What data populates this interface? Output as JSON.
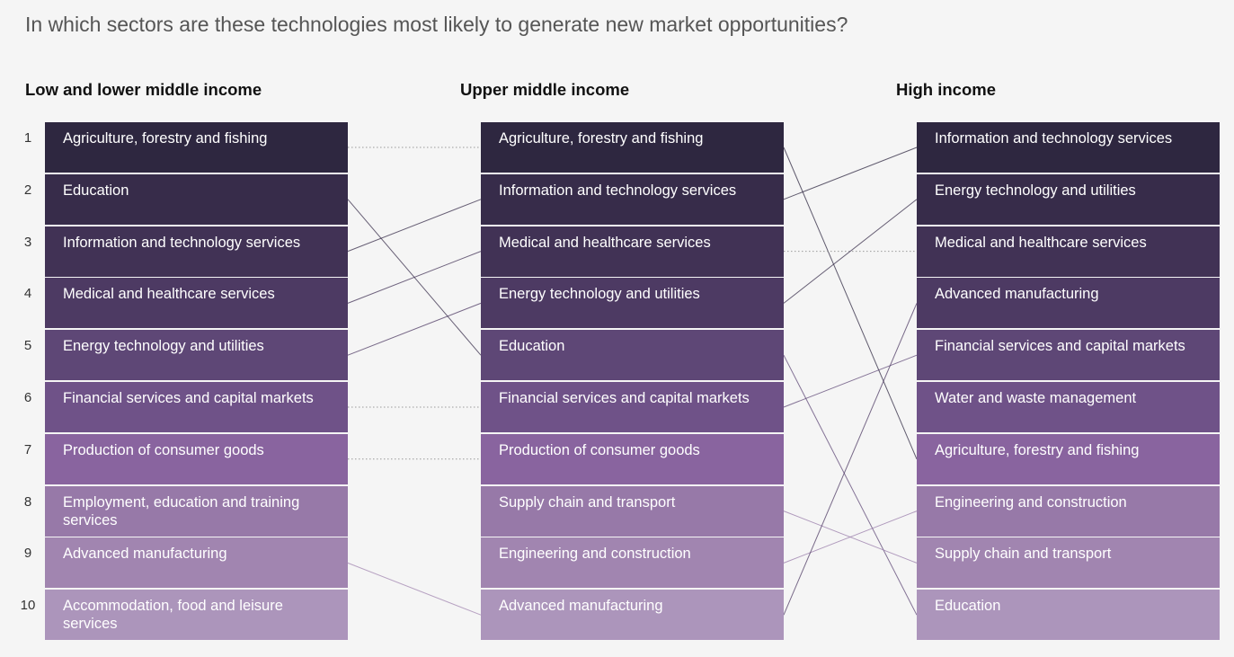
{
  "title": "In which sectors are these technologies most likely to generate new market opportunities?",
  "ranks": [
    "1",
    "2",
    "3",
    "4",
    "5",
    "6",
    "7",
    "8",
    "9",
    "10"
  ],
  "row_colors": [
    "#2e2740",
    "#372c4a",
    "#413255",
    "#4d3a63",
    "#5e4776",
    "#6f5288",
    "#89649f",
    "#9779a8",
    "#a185b0",
    "#ac95bb"
  ],
  "columns": [
    {
      "header": "Low and lower middle income",
      "items": [
        "Agriculture, forestry and fishing",
        "Education",
        "Information and technology services",
        "Medical and healthcare services",
        "Energy technology and utilities",
        "Financial services and capital markets",
        "Production of consumer goods",
        "Employment, education and training services",
        "Advanced manufacturing",
        "Accommodation, food and leisure services"
      ]
    },
    {
      "header": "Upper middle income",
      "items": [
        "Agriculture, forestry and fishing",
        "Information and technology services",
        "Medical and healthcare services",
        "Energy technology and utilities",
        "Education",
        "Financial services and capital markets",
        "Production of consumer goods",
        "Supply chain and transport",
        "Engineering and construction",
        "Advanced manufacturing"
      ]
    },
    {
      "header": "High income",
      "items": [
        "Information and technology services",
        "Energy technology and utilities",
        "Medical and healthcare services",
        "Advanced manufacturing",
        "Financial services and capital markets",
        "Water and waste management",
        "Agriculture, forestry and fishing",
        "Engineering and construction",
        "Supply chain and transport",
        "Education"
      ]
    }
  ]
}
